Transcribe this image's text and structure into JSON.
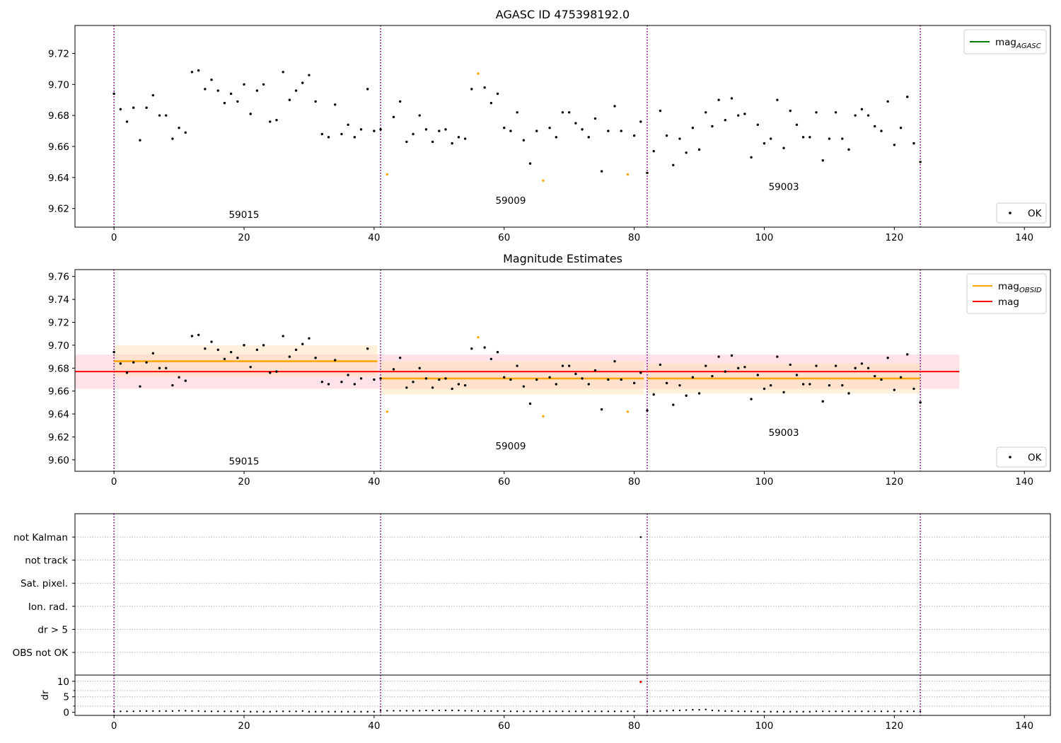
{
  "figure": {
    "colors": {
      "ok": "#000000",
      "flag": "#ffa500",
      "mag": "#ff0000",
      "mag_agasc": "#008000",
      "mag_obsid": "#ffa500",
      "boundary": "#800080",
      "band_mag": "#ffc0cb",
      "band_obsid": "#ffddb0",
      "dr_flag": "#ff0000"
    }
  },
  "chart_data": [
    {
      "type": "scatter",
      "title": "AGASC ID 475398192.0",
      "xlim": [
        -6,
        144
      ],
      "ylim": [
        9.608,
        9.738
      ],
      "xticks": [
        "0",
        "20",
        "40",
        "60",
        "80",
        "100",
        "120",
        "140"
      ],
      "yticks": [
        "9.62",
        "9.64",
        "9.66",
        "9.68",
        "9.70",
        "9.72"
      ],
      "boundaries": [
        0,
        41,
        82,
        124
      ],
      "obsid_labels": [
        {
          "text": "59015",
          "x": 20,
          "y": 9.614
        },
        {
          "text": "59009",
          "x": 61,
          "y": 9.623
        },
        {
          "text": "59003",
          "x": 103,
          "y": 9.632
        }
      ],
      "legend_lines": [
        {
          "label": "mag",
          "sub": "AGASC",
          "color": "#008000"
        }
      ],
      "legend_points": [
        {
          "label": "OK",
          "color": "#000000"
        }
      ],
      "legend_lines_position": "top-right",
      "legend_points_position": "bottom-right",
      "grid": false
    },
    {
      "type": "scatter",
      "title": "Magnitude Estimates",
      "xlim": [
        -6,
        144
      ],
      "ylim": [
        9.59,
        9.766
      ],
      "xticks": [
        "0",
        "20",
        "40",
        "60",
        "80",
        "100",
        "120",
        "140"
      ],
      "yticks": [
        "9.60",
        "9.62",
        "9.64",
        "9.66",
        "9.68",
        "9.70",
        "9.72",
        "9.74",
        "9.76"
      ],
      "boundaries": [
        0,
        41,
        82,
        124
      ],
      "obsid_labels": [
        {
          "text": "59015",
          "x": 20,
          "y": 9.596
        },
        {
          "text": "59009",
          "x": 61,
          "y": 9.609
        },
        {
          "text": "59003",
          "x": 103,
          "y": 9.621
        }
      ],
      "mag": {
        "value": 9.677,
        "lo": 9.662,
        "hi": 9.692,
        "x0": -6,
        "x1": 130
      },
      "obsid_means": [
        {
          "x0": 0,
          "x1": 40.5,
          "value": 9.686,
          "lo": 9.673,
          "hi": 9.7
        },
        {
          "x0": 41,
          "x1": 81.5,
          "value": 9.671,
          "lo": 9.657,
          "hi": 9.686
        },
        {
          "x0": 82,
          "x1": 124,
          "value": 9.671,
          "lo": 9.658,
          "hi": 9.684
        }
      ],
      "legend_lines": [
        {
          "label": "mag",
          "sub": "OBSID",
          "color": "#ffa500"
        },
        {
          "label": "mag",
          "sub": "",
          "color": "#ff0000"
        }
      ],
      "legend_points": [
        {
          "label": "OK",
          "color": "#000000"
        }
      ],
      "legend_lines_position": "top-right",
      "legend_points_position": "bottom-right",
      "grid": false
    },
    {
      "type": "scatter",
      "xlim": [
        -6,
        144
      ],
      "flag_labels": [
        "not Kalman",
        "not track",
        "Sat. pixel.",
        "Ion. rad.",
        "dr > 5",
        "OBS not OK"
      ],
      "flag_points": [
        {
          "flag": "not Kalman",
          "x": 81
        }
      ],
      "grid": true
    },
    {
      "type": "scatter",
      "xlim": [
        -6,
        144
      ],
      "ylim": [
        -1,
        12
      ],
      "ylabel": "dr",
      "xticks": [
        "0",
        "20",
        "40",
        "60",
        "80",
        "100",
        "120",
        "140"
      ],
      "yticks": [
        "0",
        "5",
        "10"
      ],
      "flagged_points": [
        {
          "x": 81,
          "y": 9.8
        }
      ],
      "grid": true
    }
  ],
  "magnitudes": [
    9.694,
    9.684,
    9.676,
    9.685,
    9.664,
    9.685,
    9.693,
    9.68,
    9.68,
    9.665,
    9.672,
    9.669,
    9.708,
    9.709,
    9.697,
    9.703,
    9.696,
    9.688,
    9.694,
    9.689,
    9.7,
    9.681,
    9.696,
    9.7,
    9.676,
    9.677,
    9.708,
    9.69,
    9.696,
    9.701,
    9.706,
    9.689,
    9.668,
    9.666,
    9.687,
    9.668,
    9.674,
    9.666,
    9.671,
    9.697,
    9.67,
    9.671,
    9.642,
    9.679,
    9.689,
    9.663,
    9.668,
    9.68,
    9.671,
    9.663,
    9.67,
    9.671,
    9.662,
    9.666,
    9.665,
    9.697,
    9.707,
    9.698,
    9.688,
    9.694,
    9.672,
    9.67,
    9.682,
    9.664,
    9.649,
    9.67,
    9.638,
    9.672,
    9.666,
    9.682,
    9.682,
    9.675,
    9.671,
    9.666,
    9.678,
    9.644,
    9.67,
    9.686,
    9.67,
    9.642,
    9.667,
    9.676,
    9.643,
    9.657,
    9.683,
    9.667,
    9.648,
    9.665,
    9.656,
    9.672,
    9.658,
    9.682,
    9.673,
    9.69,
    9.677,
    9.691,
    9.68,
    9.681,
    9.653,
    9.674,
    9.662,
    9.665,
    9.69,
    9.659,
    9.683,
    9.674,
    9.666,
    9.666,
    9.682,
    9.651,
    9.665,
    9.682,
    9.665,
    9.658,
    9.68,
    9.684,
    9.68,
    9.673,
    9.67,
    9.689,
    9.661,
    9.672,
    9.692,
    9.662,
    9.65
  ],
  "flagged_indices": [
    42,
    56,
    66,
    79
  ],
  "dr_values": [
    0.3,
    0.3,
    0.3,
    0.3,
    0.4,
    0.4,
    0.4,
    0.4,
    0.4,
    0.4,
    0.5,
    0.5,
    0.4,
    0.4,
    0.3,
    0.3,
    0.3,
    0.3,
    0.3,
    0.3,
    0.3,
    0.2,
    0.2,
    0.2,
    0.2,
    0.3,
    0.3,
    0.3,
    0.3,
    0.4,
    0.2,
    0.2,
    0.2,
    0.2,
    0.2,
    0.2,
    0.2,
    0.2,
    0.2,
    0.2,
    0.2,
    0.5,
    0.5,
    0.5,
    0.5,
    0.5,
    0.5,
    0.5,
    0.6,
    0.6,
    0.6,
    0.6,
    0.6,
    0.6,
    0.5,
    0.5,
    0.4,
    0.4,
    0.4,
    0.4,
    0.4,
    0.3,
    0.3,
    0.3,
    0.3,
    0.3,
    0.3,
    0.3,
    0.3,
    0.3,
    0.3,
    0.3,
    0.3,
    0.3,
    0.3,
    0.3,
    0.3,
    0.3,
    0.3,
    0.3,
    0.3,
    9.8,
    0.3,
    0.4,
    0.4,
    0.5,
    0.6,
    0.6,
    0.7,
    0.8,
    0.8,
    0.9,
    0.6,
    0.5,
    0.4,
    0.4,
    0.3,
    0.3,
    0.3,
    0.2,
    0.2,
    0.2,
    0.2,
    0.2,
    0.2,
    0.2,
    0.2,
    0.2,
    0.3,
    0.3,
    0.3,
    0.3,
    0.3,
    0.3,
    0.3,
    0.3,
    0.3,
    0.3,
    0.3,
    0.3,
    0.3,
    0.3,
    0.3,
    0.3,
    0.3
  ]
}
